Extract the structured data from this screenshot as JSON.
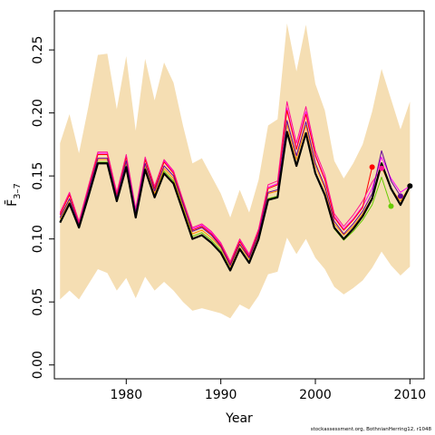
{
  "chart_data": {
    "type": "line",
    "xlabel": "Year",
    "ylabel": "F̄",
    "ylabel_subscript": "3–7",
    "xlim": [
      1972.4,
      2011.5
    ],
    "ylim": [
      -0.011,
      0.281
    ],
    "x_ticks": [
      1980,
      1990,
      2000,
      2010
    ],
    "y_ticks": [
      0.0,
      0.05,
      0.1,
      0.15,
      0.2,
      0.25
    ],
    "y_tick_labels": [
      "0.00",
      "0.05",
      "0.10",
      "0.15",
      "0.20",
      "0.25"
    ],
    "grid": false,
    "legend": "none",
    "band": {
      "color": "#f5deb3",
      "x": [
        1973,
        1974,
        1975,
        1976,
        1977,
        1978,
        1979,
        1980,
        1981,
        1982,
        1983,
        1984,
        1985,
        1986,
        1987,
        1988,
        1989,
        1990,
        1991,
        1992,
        1993,
        1994,
        1995,
        1996,
        1997,
        1998,
        1999,
        2000,
        2001,
        2002,
        2003,
        2004,
        2005,
        2006,
        2007,
        2008,
        2009,
        2010
      ],
      "upper": [
        0.176,
        0.199,
        0.168,
        0.205,
        0.246,
        0.247,
        0.203,
        0.245,
        0.186,
        0.243,
        0.21,
        0.24,
        0.224,
        0.19,
        0.16,
        0.164,
        0.15,
        0.136,
        0.117,
        0.139,
        0.121,
        0.147,
        0.19,
        0.195,
        0.271,
        0.233,
        0.27,
        0.223,
        0.202,
        0.162,
        0.148,
        0.16,
        0.175,
        0.201,
        0.235,
        0.211,
        0.187,
        0.209
      ],
      "lower": [
        0.052,
        0.059,
        0.052,
        0.064,
        0.076,
        0.073,
        0.059,
        0.069,
        0.053,
        0.07,
        0.059,
        0.066,
        0.059,
        0.05,
        0.043,
        0.045,
        0.043,
        0.041,
        0.037,
        0.048,
        0.044,
        0.055,
        0.072,
        0.074,
        0.101,
        0.088,
        0.1,
        0.085,
        0.076,
        0.062,
        0.056,
        0.061,
        0.067,
        0.077,
        0.09,
        0.079,
        0.071,
        0.078
      ]
    },
    "series": [
      {
        "color": "#ff8c00",
        "end_marker": false,
        "x": [
          1973,
          1974,
          1975,
          1976,
          1977,
          1978,
          1979,
          1980,
          1981,
          1982,
          1983,
          1984,
          1985,
          1986,
          1987,
          1988,
          1989,
          1990,
          1991,
          1992,
          1993,
          1994,
          1995,
          1996,
          1997,
          1998,
          1999,
          2000,
          2001,
          2002,
          2003,
          2004,
          2005,
          2006,
          2007,
          2008,
          2009,
          2010
        ],
        "y": [
          0.116,
          0.131,
          0.111,
          0.137,
          0.163,
          0.163,
          0.132,
          0.16,
          0.12,
          0.158,
          0.136,
          0.156,
          0.148,
          0.126,
          0.104,
          0.107,
          0.101,
          0.093,
          0.078,
          0.095,
          0.084,
          0.103,
          0.136,
          0.138,
          0.191,
          0.163,
          0.19,
          0.158,
          0.14,
          0.112,
          0.103,
          0.11,
          0.12,
          0.133,
          0.157,
          0.14,
          0.13,
          0.142
        ]
      },
      {
        "color": "#ff00ff",
        "end_marker": false,
        "x": [
          1973,
          1974,
          1975,
          1976,
          1977,
          1978,
          1979,
          1980,
          1981,
          1982,
          1983,
          1984,
          1985,
          1986,
          1987,
          1988,
          1989,
          1990,
          1991,
          1992,
          1993,
          1994,
          1995,
          1996,
          1997,
          1998,
          1999,
          2000,
          2001,
          2002,
          2003,
          2004,
          2005,
          2006,
          2007,
          2008,
          2009,
          2010
        ],
        "y": [
          0.12,
          0.136,
          0.113,
          0.141,
          0.168,
          0.168,
          0.136,
          0.166,
          0.123,
          0.164,
          0.141,
          0.162,
          0.153,
          0.13,
          0.108,
          0.111,
          0.105,
          0.096,
          0.081,
          0.099,
          0.087,
          0.107,
          0.141,
          0.144,
          0.204,
          0.172,
          0.201,
          0.167,
          0.148,
          0.118,
          0.108,
          0.116,
          0.126,
          0.14,
          0.165,
          0.148,
          0.137,
          0.142
        ]
      },
      {
        "color": "#ff0000",
        "end_marker": true,
        "x": [
          1973,
          1974,
          1975,
          1976,
          1977,
          1978,
          1979,
          1980,
          1981,
          1982,
          1983,
          1984,
          1985,
          1986,
          1987,
          1988,
          1989,
          1990,
          1991,
          1992,
          1993,
          1994,
          1995,
          1996,
          1997,
          1998,
          1999,
          2000,
          2001,
          2002,
          2003,
          2004,
          2005,
          2006
        ],
        "y": [
          0.119,
          0.135,
          0.112,
          0.14,
          0.167,
          0.167,
          0.135,
          0.165,
          0.122,
          0.163,
          0.14,
          0.161,
          0.152,
          0.129,
          0.107,
          0.11,
          0.104,
          0.095,
          0.08,
          0.098,
          0.086,
          0.106,
          0.14,
          0.143,
          0.202,
          0.171,
          0.199,
          0.166,
          0.147,
          0.117,
          0.107,
          0.115,
          0.125,
          0.157
        ]
      },
      {
        "color": "#ff1493",
        "end_marker": true,
        "x": [
          1973,
          1974,
          1975,
          1976,
          1977,
          1978,
          1979,
          1980,
          1981,
          1982,
          1983,
          1984,
          1985,
          1986,
          1987,
          1988,
          1989,
          1990,
          1991,
          1992,
          1993,
          1994,
          1995,
          1996,
          1997,
          1998,
          1999,
          2000,
          2001,
          2002,
          2003,
          2004,
          2005,
          2006,
          2007
        ],
        "y": [
          0.121,
          0.137,
          0.114,
          0.142,
          0.169,
          0.169,
          0.137,
          0.167,
          0.124,
          0.165,
          0.142,
          0.163,
          0.154,
          0.131,
          0.109,
          0.112,
          0.106,
          0.097,
          0.082,
          0.1,
          0.088,
          0.108,
          0.143,
          0.146,
          0.209,
          0.176,
          0.205,
          0.17,
          0.151,
          0.12,
          0.11,
          0.119,
          0.13,
          0.145,
          0.156
        ]
      },
      {
        "color": "#66cc00",
        "end_marker": true,
        "x": [
          1973,
          1974,
          1975,
          1976,
          1977,
          1978,
          1979,
          1980,
          1981,
          1982,
          1983,
          1984,
          1985,
          1986,
          1987,
          1988,
          1989,
          1990,
          1991,
          1992,
          1993,
          1994,
          1995,
          1996,
          1997,
          1998,
          1999,
          2000,
          2001,
          2002,
          2003,
          2004,
          2005,
          2006,
          2007,
          2008
        ],
        "y": [
          0.114,
          0.129,
          0.11,
          0.135,
          0.161,
          0.161,
          0.13,
          0.158,
          0.118,
          0.156,
          0.134,
          0.154,
          0.146,
          0.124,
          0.102,
          0.105,
          0.099,
          0.091,
          0.076,
          0.093,
          0.082,
          0.101,
          0.132,
          0.134,
          0.185,
          0.158,
          0.183,
          0.152,
          0.134,
          0.108,
          0.099,
          0.106,
          0.115,
          0.127,
          0.149,
          0.126
        ]
      },
      {
        "color": "#660099",
        "end_marker": true,
        "x": [
          1973,
          1974,
          1975,
          1976,
          1977,
          1978,
          1979,
          1980,
          1981,
          1982,
          1983,
          1984,
          1985,
          1986,
          1987,
          1988,
          1989,
          1990,
          1991,
          1992,
          1993,
          1994,
          1995,
          1996,
          1997,
          1998,
          1999,
          2000,
          2001,
          2002,
          2003,
          2004,
          2005,
          2006,
          2007,
          2008,
          2009
        ],
        "y": [
          0.117,
          0.132,
          0.111,
          0.138,
          0.164,
          0.164,
          0.133,
          0.162,
          0.121,
          0.16,
          0.138,
          0.158,
          0.15,
          0.128,
          0.106,
          0.109,
          0.103,
          0.094,
          0.079,
          0.096,
          0.085,
          0.104,
          0.137,
          0.139,
          0.194,
          0.166,
          0.193,
          0.16,
          0.142,
          0.114,
          0.104,
          0.112,
          0.122,
          0.136,
          0.17,
          0.146,
          0.134
        ]
      },
      {
        "color": "#000000",
        "end_marker": true,
        "width": 2.2,
        "x": [
          1973,
          1974,
          1975,
          1976,
          1977,
          1978,
          1979,
          1980,
          1981,
          1982,
          1983,
          1984,
          1985,
          1986,
          1987,
          1988,
          1989,
          1990,
          1991,
          1992,
          1993,
          1994,
          1995,
          1996,
          1997,
          1998,
          1999,
          2000,
          2001,
          2002,
          2003,
          2004,
          2005,
          2006,
          2007,
          2008,
          2009,
          2010
        ],
        "y": [
          0.113,
          0.128,
          0.109,
          0.134,
          0.16,
          0.16,
          0.13,
          0.157,
          0.117,
          0.155,
          0.133,
          0.152,
          0.144,
          0.122,
          0.1,
          0.103,
          0.097,
          0.089,
          0.075,
          0.092,
          0.081,
          0.1,
          0.131,
          0.133,
          0.185,
          0.158,
          0.184,
          0.152,
          0.135,
          0.109,
          0.1,
          0.108,
          0.118,
          0.132,
          0.16,
          0.14,
          0.127,
          0.142
        ]
      }
    ]
  },
  "credit": "stockassessment.org, BothnianHerring12, r1048"
}
